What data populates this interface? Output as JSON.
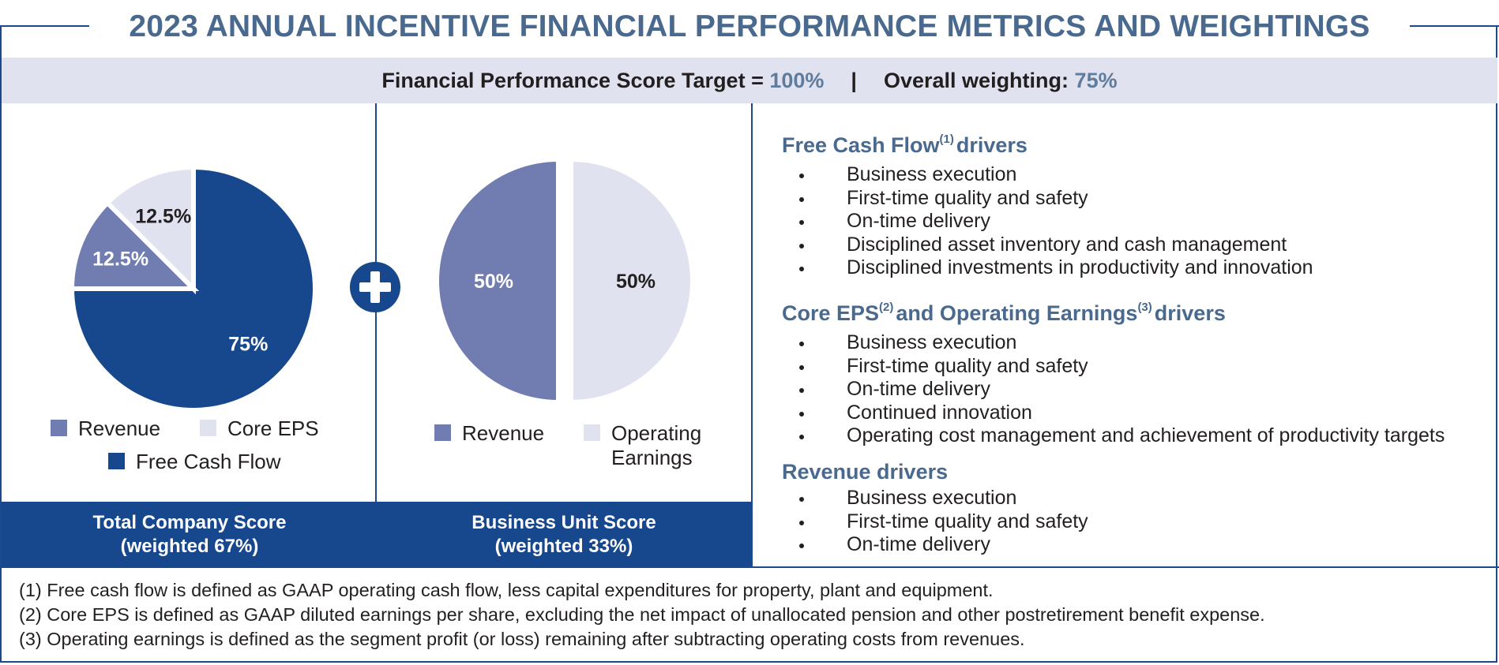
{
  "title": "2023 ANNUAL INCENTIVE FINANCIAL PERFORMANCE METRICS AND WEIGHTINGS",
  "target_band": {
    "target_label": "Financial Performance Score Target =",
    "target_value": "100%",
    "separator": "|",
    "weighting_label": "Overall weighting:",
    "weighting_value": "75%"
  },
  "colors": {
    "navy": "#17478d",
    "periwinkle": "#717cb1",
    "lavender": "#e1e2ef",
    "heading_blue": "#49698e"
  },
  "chart_data": [
    {
      "type": "pie",
      "title": "Total Company Score (weighted 67%)",
      "slices": [
        {
          "name": "Free Cash Flow",
          "value": 75,
          "label": "75%",
          "color": "#17478d",
          "label_color": "#ffffff"
        },
        {
          "name": "Revenue",
          "value": 12.5,
          "label": "12.5%",
          "color": "#717cb1",
          "label_color": "#ffffff"
        },
        {
          "name": "Core EPS",
          "value": 12.5,
          "label": "12.5%",
          "color": "#e1e2ef",
          "label_color": "#231f20"
        }
      ],
      "legend": [
        "Revenue",
        "Core EPS",
        "Free Cash Flow"
      ]
    },
    {
      "type": "pie",
      "title": "Business Unit Score (weighted 33%)",
      "slices": [
        {
          "name": "Operating Earnings",
          "value": 50,
          "label": "50%",
          "color": "#e1e2ef",
          "label_color": "#231f20"
        },
        {
          "name": "Revenue",
          "value": 50,
          "label": "50%",
          "color": "#717cb1",
          "label_color": "#ffffff"
        }
      ],
      "legend": [
        "Revenue",
        "Operating Earnings"
      ]
    }
  ],
  "legend_left": {
    "revenue": "Revenue",
    "core_eps": "Core EPS",
    "fcf": "Free Cash Flow"
  },
  "legend_right": {
    "revenue": "Revenue",
    "op_line1": "Operating",
    "op_line2": "Earnings"
  },
  "score_labels": {
    "total_line1": "Total Company Score",
    "total_line2": "(weighted 67%)",
    "bu_line1": "Business Unit Score",
    "bu_line2": "(weighted 33%)"
  },
  "drivers": {
    "fcf": {
      "title_a": "Free Cash Flow",
      "sup": "(1)",
      "title_b": "drivers",
      "items": [
        "Business execution",
        "First-time quality and safety",
        "On-time delivery",
        "Disciplined asset inventory and cash management",
        "Disciplined investments in productivity and innovation"
      ]
    },
    "eps": {
      "title_a": "Core EPS",
      "sup_a": "(2)",
      "title_b": "and Operating Earnings",
      "sup_b": "(3)",
      "title_c": "drivers",
      "items": [
        "Business execution",
        "First-time quality and safety",
        "On-time delivery",
        "Continued innovation",
        "Operating cost management and achievement of productivity targets"
      ]
    },
    "revenue": {
      "title": "Revenue drivers",
      "items": [
        "Business execution",
        "First-time quality and safety",
        "On-time delivery"
      ]
    }
  },
  "footnotes": [
    "(1) Free cash flow is defined as GAAP operating cash flow, less capital expenditures for property, plant and equipment.",
    "(2) Core EPS is defined as GAAP diluted earnings per share, excluding the net impact of unallocated pension and other postretirement benefit expense.",
    "(3) Operating earnings is defined as the segment profit (or loss) remaining after subtracting operating costs from revenues."
  ]
}
